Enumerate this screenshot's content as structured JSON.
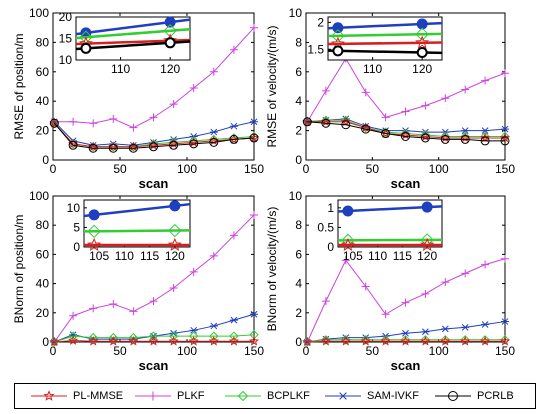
{
  "colors": {
    "PL-MMSE": "#d62020",
    "PLKF": "#cc44dd",
    "BCPLKF": "#33cc33",
    "SAM-IVKF": "#1f3fbf",
    "PCRLB": "#000000"
  },
  "legend": [
    {
      "name": "PL-MMSE",
      "marker": "star"
    },
    {
      "name": "PLKF",
      "marker": "plus"
    },
    {
      "name": "BCPLKF",
      "marker": "diamond"
    },
    {
      "name": "SAM-IVKF",
      "marker": "asterisk"
    },
    {
      "name": "PCRLB",
      "marker": "circle"
    }
  ],
  "chart_data": [
    {
      "type": "line",
      "ylabel": "RMSE of position/m",
      "xlabel": "scan",
      "xlim": [
        0,
        150
      ],
      "ylim": [
        0,
        100
      ],
      "xticks": [
        0,
        50,
        100,
        150
      ],
      "yticks": [
        0,
        20,
        40,
        60,
        80,
        100
      ],
      "x": [
        1,
        15,
        30,
        45,
        60,
        75,
        90,
        105,
        120,
        135,
        150
      ],
      "series": [
        {
          "name": "PLKF",
          "values": [
            26,
            26,
            25,
            28,
            22,
            29,
            38,
            49,
            60,
            75,
            90
          ]
        },
        {
          "name": "SAM-IVKF",
          "values": [
            26,
            13,
            10,
            11,
            10,
            12,
            14,
            16,
            19,
            23,
            26
          ]
        },
        {
          "name": "BCPLKF",
          "values": [
            25,
            11,
            9,
            9,
            9,
            11,
            12,
            13,
            14,
            15,
            16
          ]
        },
        {
          "name": "PL-MMSE",
          "values": [
            25,
            11,
            9,
            9,
            9,
            10,
            11,
            12,
            13,
            14,
            15
          ]
        },
        {
          "name": "PCRLB",
          "values": [
            25,
            10,
            8,
            8,
            8,
            9,
            10,
            11,
            12,
            14,
            15
          ]
        }
      ],
      "inset": {
        "xlim": [
          101,
          124
        ],
        "ylim": [
          10,
          20
        ],
        "xticks": [
          110,
          120
        ],
        "yticks": [
          10,
          15,
          20
        ],
        "x": [
          103,
          120
        ],
        "series": [
          {
            "name": "SAM-IVKF",
            "values": [
              16.3,
              18.8
            ]
          },
          {
            "name": "BCPLKF",
            "values": [
              15.3,
              16.8
            ]
          },
          {
            "name": "PL-MMSE",
            "values": [
              13.8,
              14.5
            ]
          },
          {
            "name": "PCRLB",
            "values": [
              12.7,
              14.0
            ]
          }
        ]
      }
    },
    {
      "type": "line",
      "ylabel": "RMSE of velocity/(m/s)",
      "xlabel": "scan",
      "xlim": [
        0,
        150
      ],
      "ylim": [
        0,
        10
      ],
      "xticks": [
        0,
        50,
        100,
        150
      ],
      "yticks": [
        0,
        2,
        4,
        6,
        8,
        10
      ],
      "x": [
        1,
        15,
        30,
        45,
        60,
        75,
        90,
        105,
        120,
        135,
        150
      ],
      "series": [
        {
          "name": "PLKF",
          "values": [
            2.6,
            4.7,
            6.9,
            4.6,
            2.9,
            3.3,
            3.7,
            4.2,
            4.8,
            5.4,
            5.9
          ]
        },
        {
          "name": "SAM-IVKF",
          "values": [
            2.6,
            2.7,
            2.8,
            2.3,
            2.0,
            2.0,
            1.9,
            1.9,
            2.0,
            2.0,
            2.1
          ]
        },
        {
          "name": "BCPLKF",
          "values": [
            2.6,
            2.7,
            2.7,
            2.2,
            1.9,
            1.8,
            1.7,
            1.6,
            1.6,
            1.6,
            1.6
          ]
        },
        {
          "name": "PL-MMSE",
          "values": [
            2.6,
            2.6,
            2.6,
            2.2,
            1.8,
            1.7,
            1.6,
            1.5,
            1.5,
            1.5,
            1.5
          ]
        },
        {
          "name": "PCRLB",
          "values": [
            2.6,
            2.5,
            2.4,
            2.1,
            1.8,
            1.6,
            1.5,
            1.4,
            1.4,
            1.3,
            1.3
          ]
        }
      ],
      "inset": {
        "xlim": [
          101,
          124
        ],
        "ylim": [
          1.3,
          2.1
        ],
        "xticks": [
          110,
          120
        ],
        "yticks": [
          1.5,
          2
        ],
        "x": [
          103,
          120
        ],
        "series": [
          {
            "name": "SAM-IVKF",
            "values": [
              1.9,
              1.97
            ]
          },
          {
            "name": "BCPLKF",
            "values": [
              1.75,
              1.78
            ]
          },
          {
            "name": "PL-MMSE",
            "values": [
              1.6,
              1.62
            ]
          },
          {
            "name": "PCRLB",
            "values": [
              1.47,
              1.44
            ]
          }
        ]
      }
    },
    {
      "type": "line",
      "ylabel": "BNorm of position/m",
      "xlabel": "scan",
      "xlim": [
        0,
        150
      ],
      "ylim": [
        0,
        100
      ],
      "xticks": [
        0,
        50,
        100,
        150
      ],
      "yticks": [
        0,
        20,
        40,
        60,
        80,
        100
      ],
      "x": [
        1,
        15,
        30,
        45,
        60,
        75,
        90,
        105,
        120,
        135,
        150
      ],
      "series": [
        {
          "name": "PLKF",
          "values": [
            0,
            18,
            23,
            26,
            21,
            28,
            37,
            48,
            59,
            73,
            87
          ]
        },
        {
          "name": "SAM-IVKF",
          "values": [
            0,
            5,
            2,
            2,
            2,
            4,
            6,
            8,
            11,
            15,
            19
          ]
        },
        {
          "name": "BCPLKF",
          "values": [
            0,
            4,
            3,
            3,
            3,
            4,
            4,
            4,
            4,
            4,
            5
          ]
        },
        {
          "name": "PL-MMSE",
          "values": [
            0,
            1,
            0.5,
            0.5,
            0.5,
            0.5,
            0.5,
            0.5,
            0.5,
            0.5,
            0.5
          ]
        }
      ],
      "inset": {
        "xlim": [
          102,
          123
        ],
        "ylim": [
          0,
          12
        ],
        "xticks": [
          105,
          110,
          115,
          120
        ],
        "yticks": [
          0,
          5,
          10
        ],
        "x": [
          104,
          120
        ],
        "series": [
          {
            "name": "SAM-IVKF",
            "values": [
              8.2,
              10.5
            ]
          },
          {
            "name": "BCPLKF",
            "values": [
              4.0,
              4.2
            ]
          },
          {
            "name": "PL-MMSE",
            "values": [
              0.5,
              0.5
            ]
          }
        ]
      }
    },
    {
      "type": "line",
      "ylabel": "BNorm of velocity/(m/s)",
      "xlabel": "scan",
      "xlim": [
        0,
        150
      ],
      "ylim": [
        0,
        10
      ],
      "xticks": [
        0,
        50,
        100,
        150
      ],
      "yticks": [
        0,
        2,
        4,
        6,
        8,
        10
      ],
      "x": [
        1,
        15,
        30,
        45,
        60,
        75,
        90,
        105,
        120,
        135,
        150
      ],
      "series": [
        {
          "name": "PLKF",
          "values": [
            0,
            2.8,
            5.6,
            3.8,
            1.9,
            2.7,
            3.3,
            4.1,
            4.7,
            5.3,
            5.7
          ]
        },
        {
          "name": "SAM-IVKF",
          "values": [
            0,
            0.2,
            0.3,
            0.3,
            0.4,
            0.6,
            0.7,
            0.9,
            1.0,
            1.2,
            1.4
          ]
        },
        {
          "name": "BCPLKF",
          "values": [
            0,
            0.15,
            0.15,
            0.15,
            0.15,
            0.15,
            0.15,
            0.15,
            0.15,
            0.15,
            0.15
          ]
        },
        {
          "name": "PL-MMSE",
          "values": [
            0,
            0.05,
            0.05,
            0.05,
            0.05,
            0.05,
            0.05,
            0.05,
            0.05,
            0.05,
            0.05
          ]
        }
      ],
      "inset": {
        "xlim": [
          102,
          123
        ],
        "ylim": [
          0,
          1.2
        ],
        "xticks": [
          105,
          110,
          115,
          120
        ],
        "yticks": [
          0,
          0.5,
          1
        ],
        "x": [
          104,
          120
        ],
        "series": [
          {
            "name": "SAM-IVKF",
            "values": [
              0.92,
              1.02
            ]
          },
          {
            "name": "BCPLKF",
            "values": [
              0.17,
              0.18
            ]
          },
          {
            "name": "PL-MMSE",
            "values": [
              0.05,
              0.05
            ]
          }
        ]
      }
    }
  ]
}
